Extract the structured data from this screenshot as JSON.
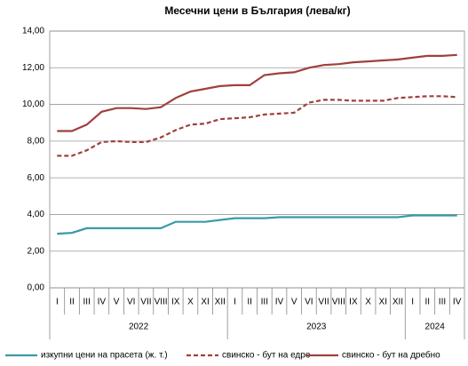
{
  "chart_data": {
    "type": "line",
    "title": "Месечни цени в България (лева/кг)",
    "category_groups": [
      {
        "label": "2022",
        "categories": [
          "I",
          "II",
          "III",
          "IV",
          "V",
          "VI",
          "VII",
          "VIII",
          "IX",
          "X",
          "XI",
          "XII"
        ]
      },
      {
        "label": "2023",
        "categories": [
          "I",
          "II",
          "III",
          "IV",
          "V",
          "VI",
          "VII",
          "VIII",
          "IX",
          "X",
          "XI",
          "XII"
        ]
      },
      {
        "label": "2024",
        "categories": [
          "I",
          "II",
          "III",
          "IV"
        ]
      }
    ],
    "series": [
      {
        "name": "изкупни цени на прасета (ж. т.)",
        "color": "#3a9aa8",
        "dash": false,
        "values": [
          2.95,
          3.0,
          3.25,
          3.25,
          3.25,
          3.25,
          3.25,
          3.25,
          3.6,
          3.6,
          3.6,
          3.7,
          3.8,
          3.8,
          3.8,
          3.85,
          3.85,
          3.85,
          3.85,
          3.85,
          3.85,
          3.85,
          3.85,
          3.85,
          3.95,
          3.95,
          3.95,
          3.95
        ]
      },
      {
        "name": "свинско - бут на едро",
        "color": "#a0403c",
        "dash": true,
        "values": [
          7.2,
          7.2,
          7.5,
          7.95,
          8.0,
          7.95,
          7.95,
          8.2,
          8.6,
          8.9,
          8.95,
          9.2,
          9.25,
          9.3,
          9.45,
          9.5,
          9.55,
          10.1,
          10.25,
          10.25,
          10.2,
          10.2,
          10.2,
          10.35,
          10.4,
          10.45,
          10.45,
          10.4
        ]
      },
      {
        "name": "свинско - бут на дребно",
        "color": "#a0403c",
        "dash": false,
        "values": [
          8.55,
          8.55,
          8.9,
          9.6,
          9.8,
          9.8,
          9.75,
          9.85,
          10.35,
          10.7,
          10.85,
          11.0,
          11.05,
          11.05,
          11.6,
          11.7,
          11.75,
          12.0,
          12.15,
          12.2,
          12.3,
          12.35,
          12.4,
          12.45,
          12.55,
          12.65,
          12.65,
          12.7
        ]
      }
    ],
    "ylim": [
      0,
      14
    ],
    "yticks": [
      {
        "value": 0,
        "label": "0,00"
      },
      {
        "value": 2,
        "label": "2,00"
      },
      {
        "value": 4,
        "label": "4,00"
      },
      {
        "value": 6,
        "label": "6,00"
      },
      {
        "value": 8,
        "label": "8,00"
      },
      {
        "value": 10,
        "label": "10,00"
      },
      {
        "value": 12,
        "label": "12,00"
      },
      {
        "value": 14,
        "label": "14,00"
      }
    ],
    "grid": true,
    "legend": "bottom"
  }
}
